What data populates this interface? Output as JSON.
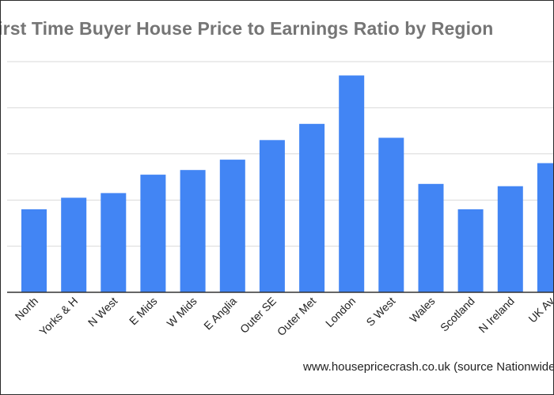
{
  "chart_data": {
    "type": "bar",
    "title": "First Time Buyer House Price to Earnings Ratio by Region",
    "xlabel": "",
    "ylabel": "",
    "categories": [
      "North",
      "Yorks & H",
      "N West",
      "E Mids",
      "W Mids",
      "E Anglia",
      "Outer SE",
      "Outer Met",
      "London",
      "S West",
      "Wales",
      "Scotland",
      "N Ireland",
      "UK Av"
    ],
    "values": [
      3.6,
      4.1,
      4.3,
      5.1,
      5.3,
      5.75,
      6.6,
      7.3,
      9.4,
      6.7,
      4.7,
      3.6,
      4.6,
      5.6
    ],
    "ylim": [
      0,
      10
    ],
    "grid": true,
    "bar_color": "#4285f4"
  },
  "source_note": "www.housepricecrash.co.uk (source Nationwide)"
}
